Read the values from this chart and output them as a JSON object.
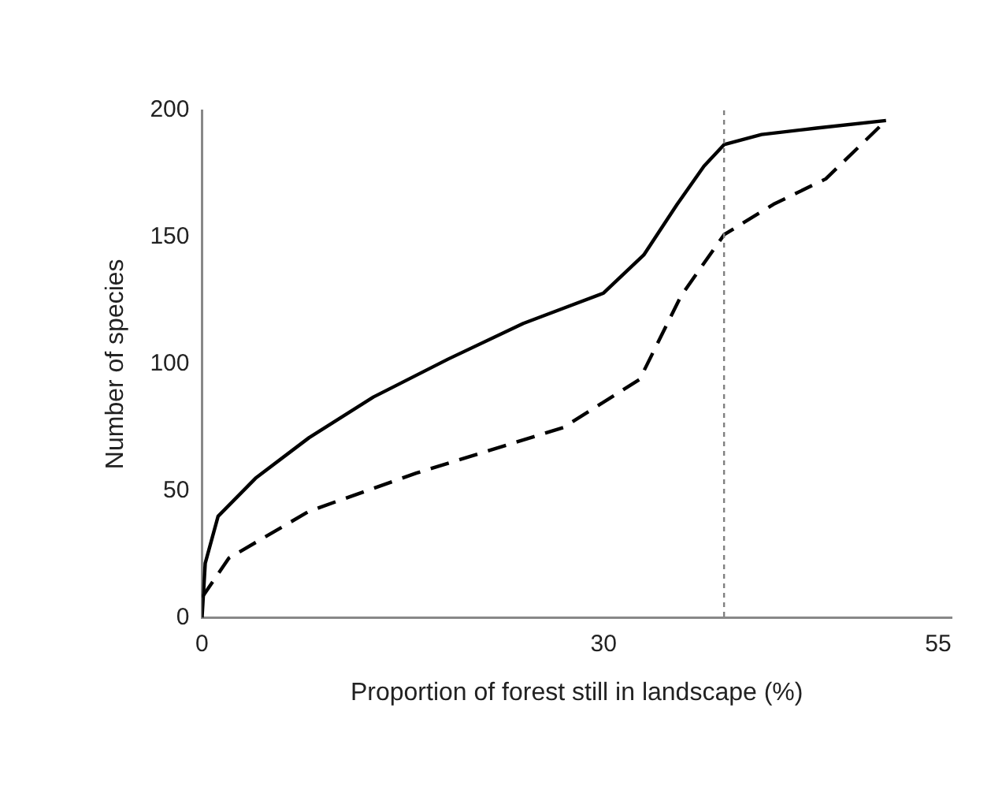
{
  "chart_data": {
    "type": "line",
    "xlabel": "Proportion of forest still in landscape (%)",
    "ylabel": "Number of species",
    "xlim": [
      0,
      56
    ],
    "xticks": [
      0,
      30,
      55
    ],
    "ylim": [
      0,
      200
    ],
    "yticks": [
      0,
      50,
      100,
      150,
      200
    ],
    "grid": false,
    "legend": false,
    "marker": "none",
    "series": [
      {
        "color": "#000000",
        "line_style": "solid",
        "x": [
          0,
          0.24,
          1.2,
          4,
          8,
          12.8,
          18.4,
          24,
          27,
          30,
          33,
          35.5,
          37.5,
          39,
          41.8,
          45.9,
          51.1
        ],
        "values": [
          0,
          21.5,
          40,
          55,
          71,
          87,
          102,
          116,
          122,
          128,
          143,
          163,
          178,
          186.5,
          190.5,
          193,
          196
        ]
      },
      {
        "color": "#000000",
        "line_style": "dashed",
        "x": [
          0,
          2,
          8,
          16,
          27,
          32.7,
          35.8,
          39,
          42.7,
          46.6,
          51.1
        ],
        "values": [
          8,
          23.5,
          42,
          57,
          75,
          94,
          127,
          151,
          163,
          173,
          196
        ]
      }
    ],
    "ref_lines": [
      {
        "axis": "x",
        "value": 39,
        "line_style": "dotted",
        "color": "#808080"
      }
    ]
  }
}
